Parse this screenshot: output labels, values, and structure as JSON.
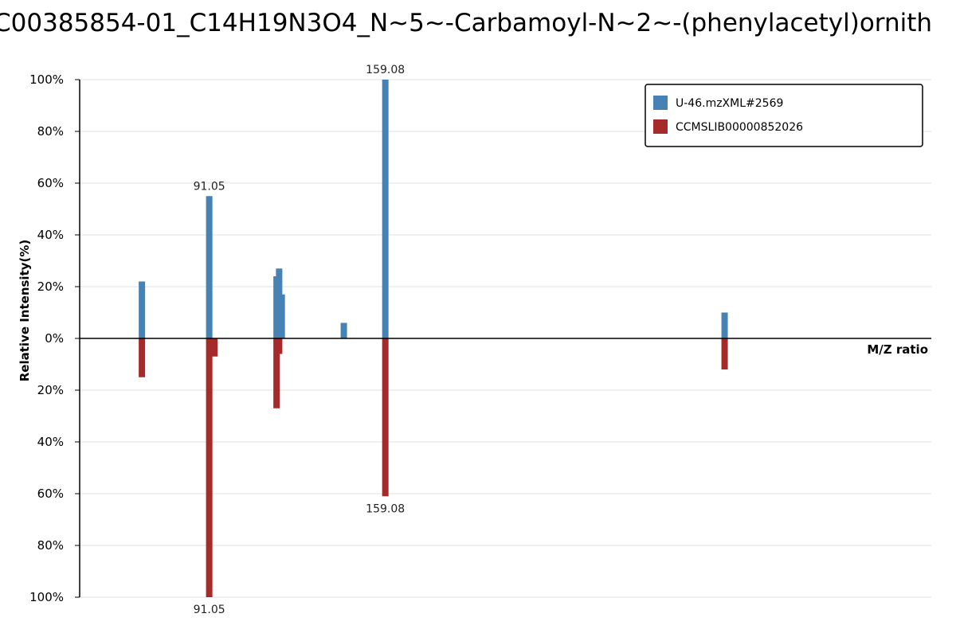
{
  "chart_data": {
    "type": "bar",
    "title": "C00385854-01_C14H19N3O4_N~5~-Carbamoyl-N~2~-(phenylacetyl)ornith",
    "xlabel": "M/Z ratio",
    "ylabel": "Relative Intensity(%)",
    "ylim": [
      -100,
      100
    ],
    "yticks": [
      "100%",
      "80%",
      "60%",
      "40%",
      "20%",
      "0%",
      "20%",
      "40%",
      "60%",
      "80%",
      "100%"
    ],
    "grid": true,
    "legend_position": "top-right",
    "series": [
      {
        "name": "U-46.mzXML#2569",
        "color": "#4682b4",
        "direction": "up",
        "peaks": [
          {
            "mz": 65.04,
            "intensity": 22
          },
          {
            "mz": 91.05,
            "intensity": 55,
            "label": "91.05"
          },
          {
            "mz": 117.06,
            "intensity": 24
          },
          {
            "mz": 118.06,
            "intensity": 27
          },
          {
            "mz": 119.07,
            "intensity": 17
          },
          {
            "mz": 143.05,
            "intensity": 6
          },
          {
            "mz": 159.08,
            "intensity": 100,
            "label": "159.08"
          },
          {
            "mz": 290.15,
            "intensity": 10
          }
        ]
      },
      {
        "name": "CCMSLIB00000852026",
        "color": "#a52a2a",
        "direction": "down",
        "peaks": [
          {
            "mz": 65.04,
            "intensity": 15
          },
          {
            "mz": 91.05,
            "intensity": 100,
            "label": "91.05"
          },
          {
            "mz": 93.05,
            "intensity": 7
          },
          {
            "mz": 117.06,
            "intensity": 27
          },
          {
            "mz": 118.06,
            "intensity": 6
          },
          {
            "mz": 159.08,
            "intensity": 61,
            "label": "159.08"
          },
          {
            "mz": 290.15,
            "intensity": 12
          }
        ]
      }
    ],
    "xlim": [
      41,
      370
    ]
  }
}
